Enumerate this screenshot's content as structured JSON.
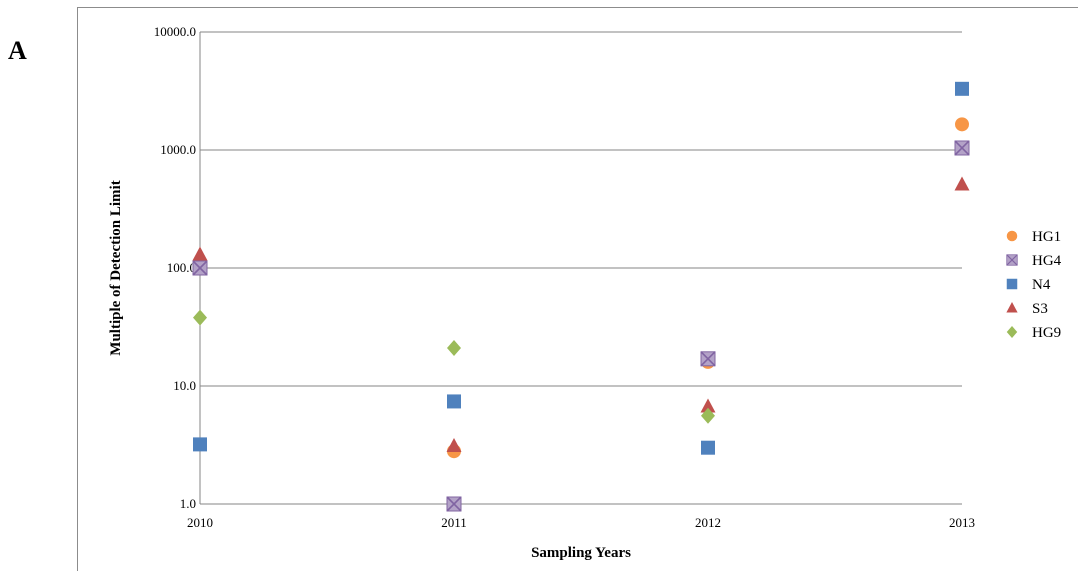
{
  "panel_label": "A",
  "chart_data": {
    "type": "scatter",
    "title": "",
    "xlabel": "Sampling Years",
    "ylabel": "Multiple of Detection Limit",
    "x": [
      "2010",
      "2011",
      "2012",
      "2013"
    ],
    "xlim": [
      2010,
      2013
    ],
    "ylim": [
      1,
      10000
    ],
    "y_scale": "log",
    "y_ticks": [
      "1.0",
      "10.0",
      "100.0",
      "1000.0",
      "10000.0"
    ],
    "y_tick_values": [
      1,
      10,
      100,
      1000,
      10000
    ],
    "grid": "horizontal",
    "legend_position": "right",
    "series": [
      {
        "name": "HG1",
        "marker": "circle",
        "color": "#f79646",
        "values": [
          null,
          2.8,
          16,
          1650
        ]
      },
      {
        "name": "HG4",
        "marker": "square-x",
        "color": "#8064a2",
        "values": [
          100,
          1.0,
          17,
          1040
        ]
      },
      {
        "name": "N4",
        "marker": "square",
        "color": "#4f81bd",
        "values": [
          3.2,
          7.4,
          3.0,
          3300
        ]
      },
      {
        "name": "S3",
        "marker": "triangle",
        "color": "#c0504d",
        "values": [
          130,
          3.1,
          6.7,
          510
        ]
      },
      {
        "name": "HG9",
        "marker": "diamond",
        "color": "#9bbb59",
        "values": [
          38,
          21,
          5.6,
          null
        ]
      }
    ]
  }
}
